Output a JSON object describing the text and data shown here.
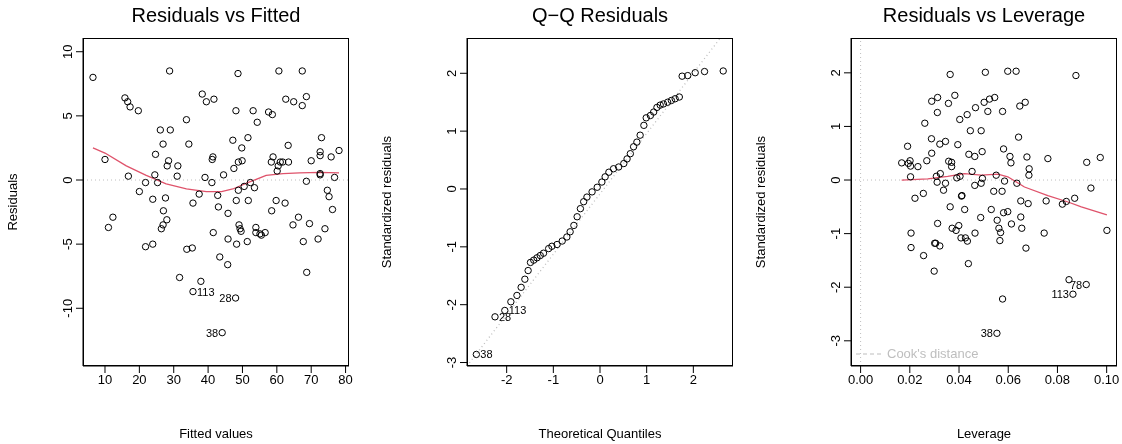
{
  "chart_data": [
    {
      "type": "scatter",
      "title": "Residuals vs Fitted",
      "xlabel": "Fitted values",
      "ylabel": "Residuals",
      "xlim": [
        3.6,
        81
      ],
      "ylim": [
        -14.5,
        11.07
      ],
      "xticks": [
        10,
        20,
        30,
        40,
        50,
        60,
        70,
        80
      ],
      "yticks": [
        -10,
        -5,
        0,
        5,
        10
      ],
      "series": [
        {
          "marker": "circle",
          "color": "#000000",
          "x": [
            6.5,
            10.0,
            11.0,
            12.3,
            15.8,
            16.6,
            17.3,
            16.8,
            19.7,
            20.0,
            21.8,
            21.8,
            23.9,
            23.9,
            24.5,
            24.7,
            25.3,
            26.1,
            26.4,
            26.9,
            26.9,
            27.0,
            27.6,
            28.0,
            28.1,
            28.5,
            28.8,
            29.0,
            31.2,
            31.0,
            31.7,
            33.7,
            33.8,
            34.4,
            35.4,
            35.6,
            35.6,
            37.4,
            37.9,
            38.3,
            39.1,
            39.5,
            41.1,
            41.2,
            41.4,
            41.5,
            41.7,
            42.8,
            43.0,
            43.4,
            44.1,
            44.5,
            45.7,
            45.8,
            45.8,
            47.2,
            47.5,
            48.2,
            48.1,
            48.3,
            48.7,
            48.0,
            48.8,
            48.8,
            49.0,
            49.3,
            49.6,
            49.8,
            49.9,
            50.5,
            51.4,
            51.6,
            51.7,
            52.3,
            53.1,
            53.5,
            53.9,
            53.9,
            54.3,
            55.1,
            55.5,
            56.6,
            57.6,
            58.5,
            58.7,
            58.4,
            58.9,
            59.8,
            60.1,
            60.4,
            60.6,
            61.0,
            61.7,
            62.4,
            62.6,
            63.3,
            63.4,
            64.7,
            64.9,
            66.3,
            67.4,
            67.4,
            67.7,
            68.6,
            68.6,
            68.7,
            69.5,
            70.0,
            72.0,
            72.6,
            72.6,
            72.6,
            72.6,
            73.0,
            74.0,
            74.7,
            75.2,
            75.8,
            76.2,
            76.8,
            78.1
          ],
          "values": [
            8.0,
            1.6,
            -3.7,
            -2.9,
            6.4,
            6.1,
            5.7,
            0.3,
            5.4,
            -0.9,
            -5.2,
            -0.2,
            -1.5,
            -5.0,
            0.4,
            2.0,
            -0.2,
            3.9,
            -3.8,
            -3.5,
            2.8,
            -2.4,
            -1.4,
            -3.1,
            1.1,
            1.5,
            8.5,
            3.9,
            1.1,
            0.3,
            -7.6,
            4.7,
            -5.4,
            2.8,
            -5.3,
            -1.8,
            -8.7,
            -1.1,
            -7.9,
            6.7,
            0.2,
            6.1,
            -0.2,
            1.6,
            1.8,
            -4.1,
            6.3,
            -1.2,
            -2.1,
            -6.0,
            -11.9,
            0.4,
            -6.6,
            -2.6,
            -4.6,
            3.1,
            0.9,
            -1.6,
            5.4,
            -5.0,
            8.3,
            -9.2,
            1.4,
            -0.8,
            -3.5,
            -3.8,
            -4.0,
            2.5,
            1.5,
            -0.5,
            -4.8,
            3.3,
            -1.6,
            -0.2,
            5.4,
            -0.6,
            -3.7,
            -4.1,
            4.5,
            -4.2,
            -4.3,
            -4.1,
            5.3,
            -2.4,
            5.1,
            1.4,
            1.8,
            -1.6,
            0.7,
            1.1,
            8.5,
            1.4,
            1.4,
            -1.8,
            6.3,
            2.7,
            1.4,
            -3.5,
            6.1,
            -2.9,
            8.5,
            5.8,
            -4.8,
            6.5,
            -0.1,
            -7.2,
            -3.4,
            1.5,
            -4.6,
            2.2,
            1.9,
            0.5,
            0.4,
            3.3,
            -3.8,
            -0.8,
            -1.3,
            1.8,
            -2.3,
            0.2,
            2.3
          ]
        },
        {
          "type": "line",
          "marker": "none",
          "color": "#df536b",
          "x": [
            6.5,
            10,
            16.2,
            22,
            27.8,
            33.7,
            39.5,
            43.9,
            47.2,
            52.1,
            56.9,
            61.8,
            66.6,
            72.5,
            78.1
          ],
          "values": [
            2.5,
            2.1,
            1.1,
            0.36,
            -0.3,
            -0.7,
            -0.9,
            -0.9,
            -0.7,
            -0.15,
            0.36,
            0.5,
            0.55,
            0.6,
            0.55
          ]
        }
      ],
      "ref_lines": [
        {
          "axis": "y",
          "value": 0,
          "color": "#bebebe",
          "line_style": "dotted"
        }
      ],
      "annotations": [
        {
          "text": "113",
          "x": 35.6,
          "y": -8.7
        },
        {
          "text": "28",
          "x": 48.0,
          "y": -9.2
        },
        {
          "text": "38",
          "x": 44.1,
          "y": -11.9
        }
      ]
    },
    {
      "type": "scatter",
      "title": "Q−Q Residuals",
      "xlabel": "Theoretical Quantiles",
      "ylabel": "Standardized residuals",
      "xlim": [
        -2.85,
        2.85
      ],
      "ylim": [
        -3.06,
        2.61
      ],
      "xticks": [
        -2,
        -1,
        0,
        1,
        2
      ],
      "yticks": [
        -3,
        -2,
        -1,
        0,
        1,
        2
      ],
      "series": [
        {
          "marker": "circle",
          "color": "#000000",
          "x": [
            -2.65,
            -2.25,
            -2.04,
            -1.91,
            -1.78,
            -1.69,
            -1.61,
            -1.54,
            -1.49,
            -1.42,
            -1.35,
            -1.28,
            -1.21,
            -1.1,
            -1.03,
            -0.92,
            -0.81,
            -0.71,
            -0.64,
            -0.56,
            -0.49,
            -0.42,
            -0.35,
            -0.28,
            -0.17,
            -0.06,
            0.04,
            0.11,
            0.19,
            0.29,
            0.4,
            0.51,
            0.58,
            0.65,
            0.72,
            0.79,
            0.86,
            0.94,
            0.99,
            1.08,
            1.15,
            1.22,
            1.29,
            1.36,
            1.45,
            1.53,
            1.61,
            1.7,
            1.76,
            1.88,
            2.04,
            2.24,
            2.64
          ],
          "values": [
            -2.86,
            -2.21,
            -2.1,
            -1.95,
            -1.84,
            -1.7,
            -1.56,
            -1.41,
            -1.27,
            -1.23,
            -1.19,
            -1.15,
            -1.11,
            -1.03,
            -0.99,
            -0.96,
            -0.9,
            -0.83,
            -0.74,
            -0.63,
            -0.48,
            -0.34,
            -0.22,
            -0.14,
            -0.05,
            0.03,
            0.12,
            0.21,
            0.29,
            0.35,
            0.38,
            0.44,
            0.52,
            0.61,
            0.73,
            0.81,
            0.93,
            1.1,
            1.23,
            1.27,
            1.33,
            1.41,
            1.45,
            1.47,
            1.5,
            1.53,
            1.56,
            1.59,
            1.95,
            1.96,
            2.01,
            2.03,
            2.04
          ]
        },
        {
          "type": "line",
          "marker": "none",
          "line_style": "dotted",
          "color": "#bebebe",
          "x": [
            -2.85,
            2.58
          ],
          "values": [
            -3.06,
            2.61
          ]
        }
      ],
      "annotations": [
        {
          "text": "38",
          "x": -2.65,
          "y": -2.86
        },
        {
          "text": "28",
          "x": -2.25,
          "y": -2.21
        },
        {
          "text": "113",
          "x": -2.04,
          "y": -2.1
        }
      ]
    },
    {
      "type": "scatter",
      "title": "Residuals vs Leverage",
      "xlabel": "Leverage",
      "ylabel": "Standardized residuals",
      "xlim": [
        -0.0039,
        0.1042
      ],
      "ylim": [
        -3.47,
        2.65
      ],
      "xticks": [
        {
          "value": 0,
          "label": "0.00"
        },
        {
          "value": 0.02,
          "label": "0.02"
        },
        {
          "value": 0.04,
          "label": "0.04"
        },
        {
          "value": 0.06,
          "label": "0.06"
        },
        {
          "value": 0.08,
          "label": "0.08"
        },
        {
          "value": 0.1,
          "label": "0.10"
        }
      ],
      "yticks": [
        -3,
        -2,
        -1,
        0,
        1,
        2
      ],
      "series": [
        {
          "marker": "circle",
          "color": "#000000",
          "x": [
            0.0167,
            0.0191,
            0.0194,
            0.0201,
            0.0203,
            0.0203,
            0.0205,
            0.0205,
            0.0221,
            0.0233,
            0.0255,
            0.0256,
            0.0261,
            0.0269,
            0.0288,
            0.0289,
            0.0289,
            0.0299,
            0.0301,
            0.0305,
            0.0308,
            0.0311,
            0.0312,
            0.0313,
            0.0313,
            0.0322,
            0.0322,
            0.0324,
            0.0337,
            0.0345,
            0.0345,
            0.0357,
            0.0358,
            0.0364,
            0.0364,
            0.037,
            0.037,
            0.0372,
            0.0383,
            0.0388,
            0.0391,
            0.0395,
            0.0399,
            0.0403,
            0.0404,
            0.0408,
            0.041,
            0.0412,
            0.0423,
            0.0426,
            0.0433,
            0.0434,
            0.0438,
            0.044,
            0.0446,
            0.0453,
            0.0464,
            0.0464,
            0.0465,
            0.0467,
            0.0488,
            0.049,
            0.049,
            0.0494,
            0.0495,
            0.0502,
            0.0507,
            0.0517,
            0.0524,
            0.0531,
            0.0541,
            0.0545,
            0.0551,
            0.0554,
            0.0555,
            0.0562,
            0.0566,
            0.0569,
            0.0575,
            0.0577,
            0.0577,
            0.0581,
            0.0581,
            0.0585,
            0.0598,
            0.0598,
            0.0607,
            0.0611,
            0.0613,
            0.0632,
            0.0635,
            0.0642,
            0.0647,
            0.0651,
            0.0651,
            0.0655,
            0.0669,
            0.0672,
            0.0676,
            0.0681,
            0.0684,
            0.0685,
            0.0746,
            0.0754,
            0.0761,
            0.082,
            0.0836,
            0.0847,
            0.0863,
            0.087,
            0.0875,
            0.0917,
            0.0919,
            0.0936,
            0.0974,
            0.1001
          ],
          "values": [
            0.32,
            0.63,
            0.31,
            0.36,
            0.26,
            0.06,
            -0.99,
            -1.26,
            -0.34,
            0.25,
            -0.25,
            -1.41,
            1.06,
            0.36,
            0.77,
            0.5,
            1.47,
            -1.7,
            -1.18,
            -1.18,
            0.07,
            -0.04,
            1.26,
            1.54,
            -0.81,
            0.67,
            -1.23,
            0.12,
            -0.19,
            0.72,
            -0.06,
            1.43,
            0.35,
            1.97,
            -0.5,
            0.25,
            0.33,
            -0.9,
            1.58,
            -0.94,
            0.04,
            0.66,
            -0.85,
            1.13,
            0.07,
            -1.08,
            -0.3,
            -0.29,
            -0.55,
            -1.08,
            1.22,
            -1.14,
            -1.56,
            0.48,
            0.92,
            0.16,
            0.44,
            -0.1,
            -0.99,
            1.35,
            -0.7,
            0.92,
            -0.06,
            0.53,
            0.03,
            1.45,
            2.01,
            1.28,
            1.51,
            -0.55,
            -0.21,
            1.54,
            0.09,
            -2.86,
            -0.75,
            -0.9,
            -1.13,
            -0.98,
            -0.21,
            1.28,
            -2.22,
            0.58,
            -0.61,
            -0.02,
            2.03,
            -0.59,
            0.44,
            0.32,
            -0.82,
            2.03,
            -0.06,
            0.8,
            1.38,
            -0.39,
            -0.69,
            -0.9,
            1.45,
            -1.27,
            0.43,
            -0.44,
            0.09,
            0.21,
            -0.99,
            -0.39,
            0.4,
            -0.45,
            -0.4,
            -1.86,
            -2.13,
            -0.34,
            1.95,
            -1.95,
            0.33,
            -0.15,
            0.42,
            -0.94
          ]
        },
        {
          "type": "line",
          "marker": "none",
          "color": "#df536b",
          "x": [
            0.0167,
            0.0273,
            0.0354,
            0.0422,
            0.049,
            0.0558,
            0.0598,
            0.0666,
            0.0761,
            0.0843,
            0.0897,
            0.1001
          ],
          "values": [
            0,
            0.02,
            0.07,
            0.12,
            0.09,
            0.11,
            0.06,
            -0.13,
            -0.29,
            -0.41,
            -0.5,
            -0.65
          ]
        },
        {
          "type": "line",
          "name": "Cook's distance",
          "marker": "none",
          "line_style": "dashed",
          "color": "#bebebe"
        }
      ],
      "legend": "bottom left",
      "ref_lines": [
        {
          "axis": "y",
          "value": 0,
          "color": "#bebebe",
          "line_style": "dotted"
        },
        {
          "axis": "x",
          "value": 0,
          "color": "#bebebe",
          "line_style": "dotted"
        }
      ],
      "annotations": [
        {
          "text": "38",
          "x": 0.0554,
          "y": -2.86
        },
        {
          "text": "113",
          "x": 0.0863,
          "y": -2.13
        },
        {
          "text": "78",
          "x": 0.0917,
          "y": -1.95
        }
      ]
    }
  ]
}
